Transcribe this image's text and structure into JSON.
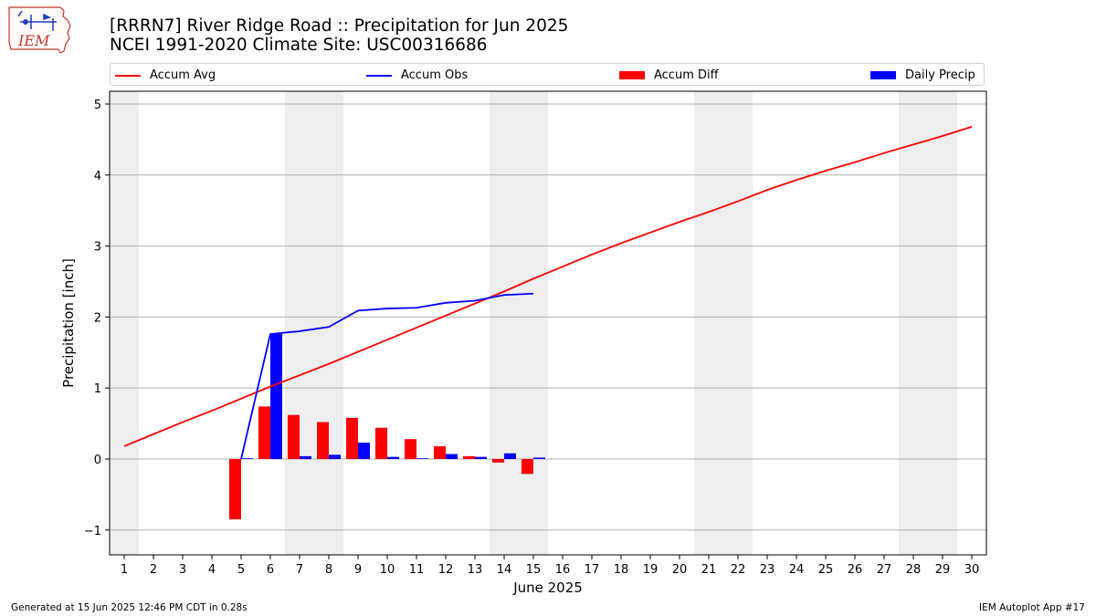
{
  "header": {
    "title_line1": "[RRRN7] River Ridge Road :: Precipitation for Jun 2025",
    "title_line2": "NCEI 1991-2020 Climate Site: USC00316686",
    "logo_text": "IEM"
  },
  "footer": {
    "left": "Generated at 15 Jun 2025 12:46 PM CDT in 0.28s",
    "right": "IEM Autoplot App #17"
  },
  "colors": {
    "avg": "#ff0000",
    "obs": "#0000ff",
    "diff": "#ff0000",
    "daily": "#0000ff",
    "weekend_shade": "#eeeeee",
    "grid": "#b0b0b0"
  },
  "legend": [
    "Accum Avg",
    "Accum Obs",
    "Accum Diff",
    "Daily Precip"
  ],
  "chart_data": {
    "type": "bar",
    "title": "[RRRN7] River Ridge Road :: Precipitation for Jun 2025",
    "subtitle": "NCEI 1991-2020 Climate Site: USC00316686",
    "xlabel": "June 2025",
    "ylabel": "Precipitation [inch]",
    "x": [
      1,
      2,
      3,
      4,
      5,
      6,
      7,
      8,
      9,
      10,
      11,
      12,
      13,
      14,
      15,
      16,
      17,
      18,
      19,
      20,
      21,
      22,
      23,
      24,
      25,
      26,
      27,
      28,
      29,
      30
    ],
    "xlim": [
      0.5,
      30.5
    ],
    "ylim": [
      -1.35,
      5.18
    ],
    "yticks": [
      -1,
      0,
      1,
      2,
      3,
      4,
      5
    ],
    "ytick_labels": [
      "−1",
      "0",
      "1",
      "2",
      "3",
      "4",
      "5"
    ],
    "grid": "horizontal",
    "legend_position": "top",
    "weekend_shading": [
      [
        0.5,
        1.5
      ],
      [
        6.5,
        8.5
      ],
      [
        13.5,
        15.5
      ],
      [
        20.5,
        22.5
      ],
      [
        27.5,
        29.5
      ]
    ],
    "series": [
      {
        "name": "Accum Avg",
        "kind": "line",
        "x": [
          1,
          2,
          3,
          4,
          5,
          6,
          7,
          8,
          9,
          10,
          11,
          12,
          13,
          14,
          15,
          16,
          17,
          18,
          19,
          20,
          21,
          22,
          23,
          24,
          25,
          26,
          27,
          28,
          29,
          30
        ],
        "values": [
          0.18,
          0.35,
          0.52,
          0.68,
          0.85,
          1.02,
          1.18,
          1.34,
          1.51,
          1.68,
          1.85,
          2.02,
          2.19,
          2.36,
          2.54,
          2.71,
          2.88,
          3.04,
          3.19,
          3.34,
          3.48,
          3.63,
          3.79,
          3.93,
          4.06,
          4.18,
          4.31,
          4.43,
          4.55,
          4.68
        ]
      },
      {
        "name": "Accum Obs",
        "kind": "line",
        "x": [
          5,
          6,
          7,
          8,
          9,
          10,
          11,
          12,
          13,
          14,
          15
        ],
        "values": [
          0.0,
          1.76,
          1.8,
          1.86,
          2.09,
          2.12,
          2.13,
          2.2,
          2.23,
          2.31,
          2.33
        ]
      },
      {
        "name": "Accum Diff",
        "kind": "bar",
        "x": [
          5,
          6,
          7,
          8,
          9,
          10,
          11,
          12,
          13,
          14,
          15
        ],
        "values": [
          -0.85,
          0.74,
          0.62,
          0.52,
          0.58,
          0.44,
          0.28,
          0.18,
          0.04,
          -0.05,
          -0.21
        ]
      },
      {
        "name": "Daily Precip",
        "kind": "bar",
        "x": [
          5,
          6,
          7,
          8,
          9,
          10,
          11,
          12,
          13,
          14,
          15
        ],
        "values": [
          0.01,
          1.76,
          0.04,
          0.06,
          0.23,
          0.03,
          0.01,
          0.07,
          0.03,
          0.08,
          0.02
        ]
      }
    ]
  }
}
